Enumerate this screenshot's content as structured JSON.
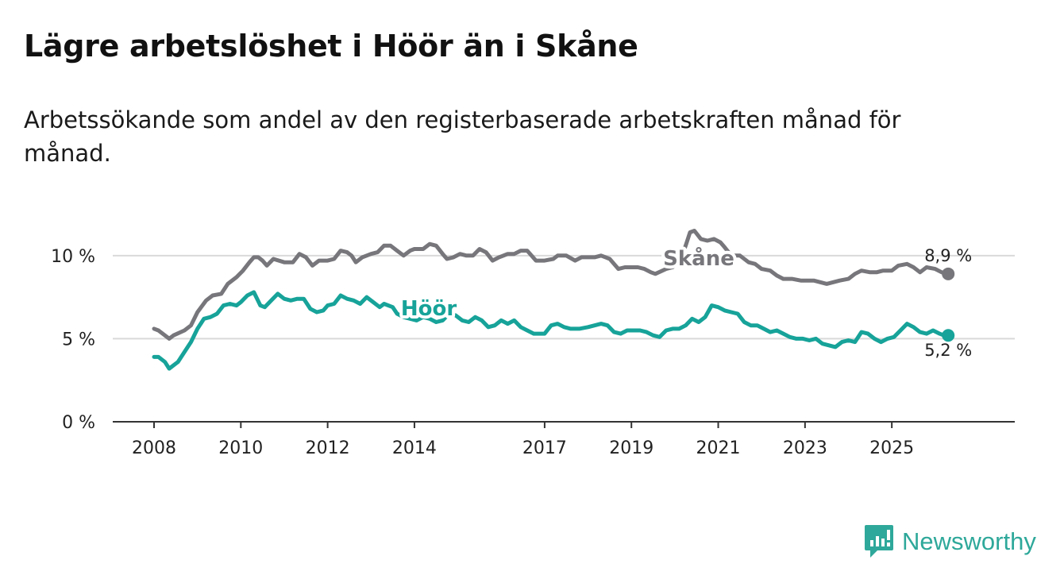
{
  "title": "Lägre arbetslöshet i Höör än i Skåne",
  "subtitle": "Arbetssökande som andel av den registerbaserade arbetskraften månad för månad.",
  "brand": "Newsworthy",
  "colors": {
    "skane": "#77767b",
    "hoor": "#17a399",
    "grid": "#d9d9d9",
    "axis": "#333333",
    "brand": "#2ea89a"
  },
  "chart_data": {
    "type": "line",
    "title": "Lägre arbetslöshet i Höör än i Skåne",
    "xlabel": "",
    "ylabel": "",
    "xlim": [
      2008.0,
      2026.9
    ],
    "ylim": [
      0,
      12
    ],
    "x_ticks": [
      2008,
      2010,
      2012,
      2014,
      2017,
      2019,
      2021,
      2023,
      2025
    ],
    "y_ticks": [
      0,
      5,
      10
    ],
    "y_tick_labels": [
      "0 %",
      "5 %",
      "10 %"
    ],
    "grid": true,
    "series": [
      {
        "name": "Skåne",
        "color_key": "skane",
        "end_label": "8,9 %",
        "points": [
          [
            2008.0,
            5.6
          ],
          [
            2008.1,
            5.5
          ],
          [
            2008.25,
            5.2
          ],
          [
            2008.35,
            5.0
          ],
          [
            2008.45,
            5.2
          ],
          [
            2008.7,
            5.5
          ],
          [
            2008.85,
            5.8
          ],
          [
            2009.0,
            6.6
          ],
          [
            2009.2,
            7.3
          ],
          [
            2009.35,
            7.6
          ],
          [
            2009.55,
            7.7
          ],
          [
            2009.7,
            8.3
          ],
          [
            2009.9,
            8.7
          ],
          [
            2010.05,
            9.1
          ],
          [
            2010.2,
            9.6
          ],
          [
            2010.3,
            9.9
          ],
          [
            2010.4,
            9.9
          ],
          [
            2010.5,
            9.7
          ],
          [
            2010.6,
            9.4
          ],
          [
            2010.75,
            9.8
          ],
          [
            2011.0,
            9.6
          ],
          [
            2011.2,
            9.6
          ],
          [
            2011.35,
            10.1
          ],
          [
            2011.5,
            9.9
          ],
          [
            2011.65,
            9.4
          ],
          [
            2011.8,
            9.7
          ],
          [
            2012.0,
            9.7
          ],
          [
            2012.15,
            9.8
          ],
          [
            2012.3,
            10.3
          ],
          [
            2012.45,
            10.2
          ],
          [
            2012.55,
            10.0
          ],
          [
            2012.65,
            9.6
          ],
          [
            2012.8,
            9.9
          ],
          [
            2013.0,
            10.1
          ],
          [
            2013.15,
            10.2
          ],
          [
            2013.3,
            10.6
          ],
          [
            2013.45,
            10.6
          ],
          [
            2013.6,
            10.3
          ],
          [
            2013.75,
            10.0
          ],
          [
            2013.9,
            10.3
          ],
          [
            2014.0,
            10.4
          ],
          [
            2014.2,
            10.4
          ],
          [
            2014.35,
            10.7
          ],
          [
            2014.5,
            10.6
          ],
          [
            2014.65,
            10.1
          ],
          [
            2014.75,
            9.8
          ],
          [
            2014.9,
            9.9
          ],
          [
            2015.05,
            10.1
          ],
          [
            2015.2,
            10.0
          ],
          [
            2015.35,
            10.0
          ],
          [
            2015.5,
            10.4
          ],
          [
            2015.65,
            10.2
          ],
          [
            2015.8,
            9.7
          ],
          [
            2015.95,
            9.9
          ],
          [
            2016.15,
            10.1
          ],
          [
            2016.3,
            10.1
          ],
          [
            2016.45,
            10.3
          ],
          [
            2016.6,
            10.3
          ],
          [
            2016.8,
            9.7
          ],
          [
            2017.0,
            9.7
          ],
          [
            2017.2,
            9.8
          ],
          [
            2017.3,
            10.0
          ],
          [
            2017.5,
            10.0
          ],
          [
            2017.7,
            9.7
          ],
          [
            2017.85,
            9.9
          ],
          [
            2018.0,
            9.9
          ],
          [
            2018.15,
            9.9
          ],
          [
            2018.3,
            10.0
          ],
          [
            2018.5,
            9.8
          ],
          [
            2018.7,
            9.2
          ],
          [
            2018.85,
            9.3
          ],
          [
            2019.0,
            9.3
          ],
          [
            2019.15,
            9.3
          ],
          [
            2019.3,
            9.2
          ],
          [
            2019.45,
            9.0
          ],
          [
            2019.55,
            8.9
          ],
          [
            2019.8,
            9.2
          ],
          [
            2019.95,
            9.3
          ],
          [
            2020.15,
            9.9
          ],
          [
            2020.25,
            10.6
          ],
          [
            2020.35,
            11.4
          ],
          [
            2020.45,
            11.5
          ],
          [
            2020.6,
            11.0
          ],
          [
            2020.75,
            10.9
          ],
          [
            2020.9,
            11.0
          ],
          [
            2021.05,
            10.8
          ],
          [
            2021.15,
            10.5
          ],
          [
            2021.3,
            10.0
          ],
          [
            2021.5,
            10.0
          ],
          [
            2021.7,
            9.6
          ],
          [
            2021.85,
            9.5
          ],
          [
            2022.0,
            9.2
          ],
          [
            2022.2,
            9.1
          ],
          [
            2022.35,
            8.8
          ],
          [
            2022.5,
            8.6
          ],
          [
            2022.7,
            8.6
          ],
          [
            2022.9,
            8.5
          ],
          [
            2023.05,
            8.5
          ],
          [
            2023.2,
            8.5
          ],
          [
            2023.35,
            8.4
          ],
          [
            2023.5,
            8.3
          ],
          [
            2023.65,
            8.4
          ],
          [
            2023.8,
            8.5
          ],
          [
            2024.0,
            8.6
          ],
          [
            2024.15,
            8.9
          ],
          [
            2024.3,
            9.1
          ],
          [
            2024.5,
            9.0
          ],
          [
            2024.65,
            9.0
          ],
          [
            2024.8,
            9.1
          ],
          [
            2025.0,
            9.1
          ],
          [
            2025.15,
            9.4
          ],
          [
            2025.35,
            9.5
          ],
          [
            2025.5,
            9.3
          ],
          [
            2025.65,
            9.0
          ],
          [
            2025.8,
            9.3
          ],
          [
            2026.0,
            9.2
          ],
          [
            2026.15,
            9.0
          ],
          [
            2026.3,
            8.9
          ]
        ]
      },
      {
        "name": "Höör",
        "color_key": "hoor",
        "end_label": "5,2 %",
        "points": [
          [
            2008.0,
            3.9
          ],
          [
            2008.1,
            3.9
          ],
          [
            2008.25,
            3.6
          ],
          [
            2008.35,
            3.2
          ],
          [
            2008.45,
            3.4
          ],
          [
            2008.55,
            3.6
          ],
          [
            2008.7,
            4.2
          ],
          [
            2008.85,
            4.8
          ],
          [
            2009.0,
            5.6
          ],
          [
            2009.15,
            6.2
          ],
          [
            2009.3,
            6.3
          ],
          [
            2009.45,
            6.5
          ],
          [
            2009.6,
            7.0
          ],
          [
            2009.75,
            7.1
          ],
          [
            2009.9,
            7.0
          ],
          [
            2010.0,
            7.2
          ],
          [
            2010.15,
            7.6
          ],
          [
            2010.3,
            7.8
          ],
          [
            2010.45,
            7.0
          ],
          [
            2010.55,
            6.9
          ],
          [
            2010.7,
            7.3
          ],
          [
            2010.85,
            7.7
          ],
          [
            2011.0,
            7.4
          ],
          [
            2011.15,
            7.3
          ],
          [
            2011.3,
            7.4
          ],
          [
            2011.45,
            7.4
          ],
          [
            2011.6,
            6.8
          ],
          [
            2011.75,
            6.6
          ],
          [
            2011.9,
            6.7
          ],
          [
            2012.0,
            7.0
          ],
          [
            2012.15,
            7.1
          ],
          [
            2012.3,
            7.6
          ],
          [
            2012.45,
            7.4
          ],
          [
            2012.6,
            7.3
          ],
          [
            2012.75,
            7.1
          ],
          [
            2012.9,
            7.5
          ],
          [
            2013.05,
            7.2
          ],
          [
            2013.2,
            6.9
          ],
          [
            2013.3,
            7.1
          ],
          [
            2013.5,
            6.9
          ],
          [
            2013.6,
            6.5
          ],
          [
            2013.75,
            6.3
          ],
          [
            2013.9,
            6.2
          ],
          [
            2014.05,
            6.1
          ],
          [
            2014.2,
            6.3
          ],
          [
            2014.35,
            6.2
          ],
          [
            2014.5,
            6.0
          ],
          [
            2014.65,
            6.1
          ],
          [
            2014.8,
            6.5
          ],
          [
            2014.95,
            6.4
          ],
          [
            2015.1,
            6.1
          ],
          [
            2015.25,
            6.0
          ],
          [
            2015.4,
            6.3
          ],
          [
            2015.55,
            6.1
          ],
          [
            2015.7,
            5.7
          ],
          [
            2015.85,
            5.8
          ],
          [
            2016.0,
            6.1
          ],
          [
            2016.15,
            5.9
          ],
          [
            2016.3,
            6.1
          ],
          [
            2016.45,
            5.7
          ],
          [
            2016.6,
            5.5
          ],
          [
            2016.75,
            5.3
          ],
          [
            2016.9,
            5.3
          ],
          [
            2017.0,
            5.3
          ],
          [
            2017.15,
            5.8
          ],
          [
            2017.3,
            5.9
          ],
          [
            2017.45,
            5.7
          ],
          [
            2017.6,
            5.6
          ],
          [
            2017.8,
            5.6
          ],
          [
            2018.0,
            5.7
          ],
          [
            2018.15,
            5.8
          ],
          [
            2018.3,
            5.9
          ],
          [
            2018.45,
            5.8
          ],
          [
            2018.6,
            5.4
          ],
          [
            2018.75,
            5.3
          ],
          [
            2018.9,
            5.5
          ],
          [
            2019.05,
            5.5
          ],
          [
            2019.2,
            5.5
          ],
          [
            2019.35,
            5.4
          ],
          [
            2019.5,
            5.2
          ],
          [
            2019.65,
            5.1
          ],
          [
            2019.8,
            5.5
          ],
          [
            2019.95,
            5.6
          ],
          [
            2020.1,
            5.6
          ],
          [
            2020.25,
            5.8
          ],
          [
            2020.4,
            6.2
          ],
          [
            2020.55,
            6.0
          ],
          [
            2020.7,
            6.3
          ],
          [
            2020.85,
            7.0
          ],
          [
            2021.0,
            6.9
          ],
          [
            2021.15,
            6.7
          ],
          [
            2021.3,
            6.6
          ],
          [
            2021.45,
            6.5
          ],
          [
            2021.6,
            6.0
          ],
          [
            2021.75,
            5.8
          ],
          [
            2021.9,
            5.8
          ],
          [
            2022.05,
            5.6
          ],
          [
            2022.2,
            5.4
          ],
          [
            2022.35,
            5.5
          ],
          [
            2022.5,
            5.3
          ],
          [
            2022.65,
            5.1
          ],
          [
            2022.8,
            5.0
          ],
          [
            2022.95,
            5.0
          ],
          [
            2023.1,
            4.9
          ],
          [
            2023.25,
            5.0
          ],
          [
            2023.4,
            4.7
          ],
          [
            2023.55,
            4.6
          ],
          [
            2023.7,
            4.5
          ],
          [
            2023.85,
            4.8
          ],
          [
            2024.0,
            4.9
          ],
          [
            2024.15,
            4.8
          ],
          [
            2024.3,
            5.4
          ],
          [
            2024.45,
            5.3
          ],
          [
            2024.6,
            5.0
          ],
          [
            2024.75,
            4.8
          ],
          [
            2024.9,
            5.0
          ],
          [
            2025.05,
            5.1
          ],
          [
            2025.2,
            5.5
          ],
          [
            2025.35,
            5.9
          ],
          [
            2025.5,
            5.7
          ],
          [
            2025.65,
            5.4
          ],
          [
            2025.8,
            5.3
          ],
          [
            2025.95,
            5.5
          ],
          [
            2026.1,
            5.3
          ],
          [
            2026.2,
            5.2
          ],
          [
            2026.3,
            5.2
          ]
        ]
      }
    ]
  }
}
